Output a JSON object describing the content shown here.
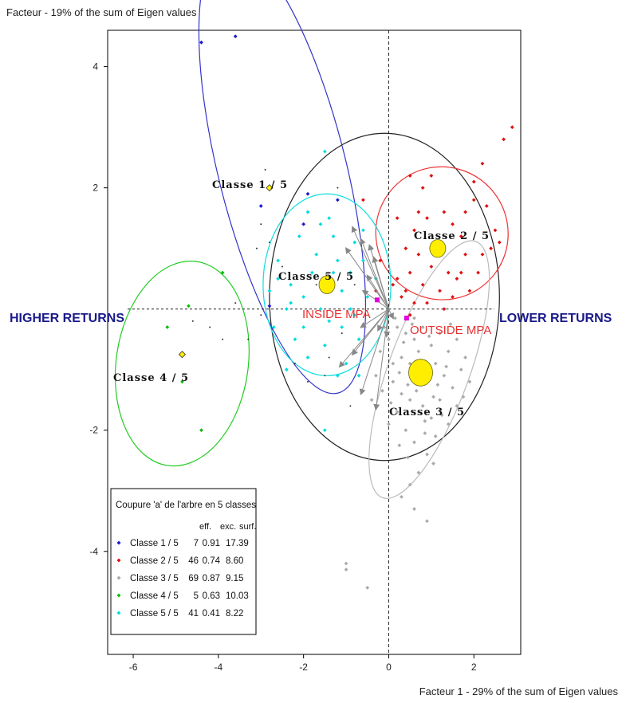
{
  "chart_data": {
    "type": "scatter",
    "ylabel": "Facteur  - 19% of the sum of Eigen values",
    "xlabel": "Facteur 1 - 29% of the sum of Eigen values",
    "xlim": [
      -6.6,
      3.1
    ],
    "ylim": [
      -5.7,
      4.6
    ],
    "xticks": [
      -6,
      -4,
      -2,
      0,
      2
    ],
    "yticks": [
      -4,
      -2,
      2,
      4
    ],
    "axis_annotations": {
      "left": "HIGHER RETURNS",
      "right": "LOWER RETURNS",
      "inside": "INSIDE MPA",
      "outside": "OUTSIDE MPA"
    },
    "supplementary_points": [
      {
        "label": "INSIDE MPA",
        "x": -0.27,
        "y": 0.15,
        "color": "#e000e0"
      },
      {
        "label": "OUTSIDE MPA",
        "x": 0.42,
        "y": -0.15,
        "color": "#e000e0"
      }
    ],
    "legend": {
      "title": "Coupure 'a' de l'arbre en  5 classes",
      "columns": [
        "eff.",
        "exc.",
        "surf."
      ],
      "rows": [
        {
          "name": "Classe  1 / 5",
          "eff": "7",
          "exc": "0.91",
          "surf": "17.39",
          "color": "#1a1acc"
        },
        {
          "name": "Classe  2 / 5",
          "eff": "46",
          "exc": "0.74",
          "surf": "8.60",
          "color": "#dd1111"
        },
        {
          "name": "Classe  3 / 5",
          "eff": "69",
          "exc": "0.87",
          "surf": "9.15",
          "color": "#aaaaaa"
        },
        {
          "name": "Classe  4 / 5",
          "eff": "5",
          "exc": "0.63",
          "surf": "10.03",
          "color": "#11bb11"
        },
        {
          "name": "Classe  5 / 5",
          "eff": "41",
          "exc": "0.41",
          "surf": "8.22",
          "color": "#00dddd"
        }
      ]
    },
    "series": [
      {
        "name": "Classe 1 / 5",
        "color": "#1a1acc",
        "centroid": {
          "label": "Classe  1 / 5",
          "x": -2.8,
          "y": 2.0,
          "size": "small"
        },
        "ellipse": {
          "cx": -2.5,
          "cy": 2.3,
          "rx": 1.5,
          "ry": 3.8,
          "angle": -14,
          "color": "#3333cc"
        },
        "points": [
          [
            -4.4,
            4.4
          ],
          [
            -3.6,
            4.5
          ],
          [
            -3.0,
            1.7
          ],
          [
            -1.9,
            1.9
          ],
          [
            -1.2,
            1.8
          ],
          [
            -2.8,
            0.05
          ],
          [
            -2.0,
            1.4
          ]
        ]
      },
      {
        "name": "Classe 2 / 5",
        "color": "#dd1111",
        "centroid": {
          "label": "Classe  2 / 5",
          "x": 1.15,
          "y": 1.0,
          "size": "medium"
        },
        "ellipse": {
          "cx": 1.25,
          "cy": 1.25,
          "rx": 1.55,
          "ry": 1.1,
          "angle": -32,
          "color": "#ee3333"
        },
        "points": [
          [
            2.7,
            2.8
          ],
          [
            2.9,
            3.0
          ],
          [
            2.2,
            2.4
          ],
          [
            2.0,
            2.1
          ],
          [
            1.8,
            1.6
          ],
          [
            2.0,
            1.8
          ],
          [
            2.3,
            1.7
          ],
          [
            2.5,
            1.3
          ],
          [
            0.5,
            2.2
          ],
          [
            0.8,
            2.0
          ],
          [
            1.0,
            2.2
          ],
          [
            0.2,
            1.5
          ],
          [
            0.6,
            1.3
          ],
          [
            0.9,
            1.5
          ],
          [
            1.3,
            1.6
          ],
          [
            1.5,
            1.4
          ],
          [
            1.7,
            1.2
          ],
          [
            2.2,
            0.9
          ],
          [
            2.4,
            1.0
          ],
          [
            0.4,
            1.0
          ],
          [
            0.7,
            0.9
          ],
          [
            1.0,
            0.7
          ],
          [
            1.4,
            0.6
          ],
          [
            1.6,
            0.5
          ],
          [
            1.8,
            0.9
          ],
          [
            0.2,
            0.5
          ],
          [
            0.5,
            0.6
          ],
          [
            0.8,
            0.4
          ],
          [
            1.2,
            0.3
          ],
          [
            1.5,
            0.2
          ],
          [
            0.3,
            0.2
          ],
          [
            0.6,
            0.1
          ],
          [
            0.9,
            0.1
          ],
          [
            1.3,
            0.0
          ],
          [
            0.1,
            0.4
          ],
          [
            0.4,
            0.3
          ],
          [
            -0.2,
            0.8
          ],
          [
            -0.6,
            1.8
          ],
          [
            1.9,
            0.3
          ],
          [
            2.1,
            0.6
          ],
          [
            0.7,
            1.6
          ],
          [
            1.1,
            1.1
          ],
          [
            -0.3,
            0.3
          ],
          [
            0.5,
            -0.1
          ],
          [
            1.7,
            0.6
          ],
          [
            2.6,
            1.1
          ]
        ]
      },
      {
        "name": "Classe 3 / 5",
        "color": "#aaaaaa",
        "centroid": {
          "label": "Classe  3 / 5",
          "x": 0.75,
          "y": -1.05,
          "size": "large"
        },
        "ellipse": {
          "cx": 0.95,
          "cy": -1.0,
          "rx": 0.95,
          "ry": 2.25,
          "angle": 20,
          "color": "#bbbbbb"
        },
        "points": [
          [
            0.2,
            -0.3
          ],
          [
            0.4,
            -0.4
          ],
          [
            0.6,
            -0.5
          ],
          [
            0.8,
            -0.3
          ],
          [
            1.0,
            -0.6
          ],
          [
            1.2,
            -0.4
          ],
          [
            1.4,
            -0.7
          ],
          [
            1.6,
            -0.5
          ],
          [
            0.3,
            -0.8
          ],
          [
            0.5,
            -0.9
          ],
          [
            0.7,
            -0.7
          ],
          [
            0.9,
            -1.0
          ],
          [
            1.1,
            -0.9
          ],
          [
            1.3,
            -1.1
          ],
          [
            1.5,
            -1.3
          ],
          [
            1.7,
            -1.0
          ],
          [
            0.1,
            -1.2
          ],
          [
            0.3,
            -1.4
          ],
          [
            0.5,
            -1.5
          ],
          [
            0.8,
            -1.6
          ],
          [
            1.0,
            -1.8
          ],
          [
            1.2,
            -1.5
          ],
          [
            1.4,
            -1.9
          ],
          [
            0.2,
            -1.7
          ],
          [
            0.4,
            -2.0
          ],
          [
            0.6,
            -2.2
          ],
          [
            0.9,
            -2.4
          ],
          [
            1.1,
            -2.1
          ],
          [
            0.0,
            -1.9
          ],
          [
            -0.3,
            -1.1
          ],
          [
            -0.4,
            -1.5
          ],
          [
            -0.2,
            -0.7
          ],
          [
            0.0,
            -0.5
          ],
          [
            0.1,
            -0.9
          ],
          [
            0.7,
            -2.7
          ],
          [
            0.5,
            -2.9
          ],
          [
            0.3,
            -3.1
          ],
          [
            0.6,
            -3.3
          ],
          [
            0.9,
            -3.5
          ],
          [
            -1.0,
            -4.2
          ],
          [
            -1.0,
            -4.3
          ],
          [
            -0.5,
            -4.6
          ],
          [
            -3.5,
            -5.2
          ],
          [
            1.8,
            -0.8
          ],
          [
            1.6,
            -1.6
          ],
          [
            1.9,
            -1.2
          ],
          [
            0.15,
            -0.15
          ],
          [
            0.35,
            -0.55
          ],
          [
            0.55,
            -0.25
          ],
          [
            0.75,
            -0.85
          ],
          [
            0.95,
            -0.45
          ],
          [
            1.15,
            -1.25
          ],
          [
            1.35,
            -0.95
          ],
          [
            0.25,
            -1.05
          ],
          [
            0.45,
            -1.25
          ],
          [
            0.65,
            -1.35
          ],
          [
            0.85,
            -1.85
          ],
          [
            1.05,
            -1.45
          ],
          [
            1.25,
            -1.75
          ],
          [
            -0.15,
            -1.35
          ],
          [
            0.05,
            -1.55
          ],
          [
            0.25,
            -2.25
          ],
          [
            0.45,
            -2.45
          ],
          [
            0.85,
            -2.05
          ],
          [
            1.05,
            -2.55
          ],
          [
            -0.1,
            -0.3
          ],
          [
            1.75,
            -1.45
          ],
          [
            0.6,
            -0.15
          ],
          [
            1.45,
            -0.25
          ]
        ]
      },
      {
        "name": "Classe 4 / 5",
        "color": "#11bb11",
        "centroid": {
          "label": "Classe  4 / 5",
          "x": -4.85,
          "y": -0.75,
          "size": "small"
        },
        "ellipse": {
          "cx": -4.85,
          "cy": -0.9,
          "rx": 1.55,
          "ry": 1.7,
          "angle": 8,
          "color": "#22cc22"
        },
        "points": [
          [
            -3.9,
            0.6
          ],
          [
            -4.7,
            0.05
          ],
          [
            -4.85,
            -1.2
          ],
          [
            -4.4,
            -2.0
          ],
          [
            -5.2,
            -0.3
          ]
        ]
      },
      {
        "name": "Classe 5 / 5",
        "color": "#00dddd",
        "centroid": {
          "label": "Classe  5 / 5",
          "x": -1.45,
          "y": 0.4,
          "size": "medium"
        },
        "ellipse": {
          "cx": -1.45,
          "cy": 0.4,
          "rx": 1.5,
          "ry": 1.5,
          "angle": 0,
          "color": "#11dddd"
        },
        "points": [
          [
            -1.5,
            2.6
          ],
          [
            -1.9,
            1.6
          ],
          [
            -1.6,
            1.4
          ],
          [
            -1.3,
            1.2
          ],
          [
            -0.8,
            1.1
          ],
          [
            -1.2,
            0.8
          ],
          [
            -1.8,
            0.6
          ],
          [
            -2.3,
            0.4
          ],
          [
            -2.6,
            0.5
          ],
          [
            -2.3,
            0.1
          ],
          [
            -2.0,
            0.2
          ],
          [
            -1.6,
            0.0
          ],
          [
            -1.4,
            -0.2
          ],
          [
            -1.1,
            0.3
          ],
          [
            -0.9,
            0.6
          ],
          [
            -0.6,
            0.8
          ],
          [
            -0.5,
            0.2
          ],
          [
            -0.8,
            -0.1
          ],
          [
            -1.1,
            -0.3
          ],
          [
            -1.5,
            -0.6
          ],
          [
            -1.9,
            -0.8
          ],
          [
            -2.2,
            -0.5
          ],
          [
            -2.7,
            -0.3
          ],
          [
            -2.6,
            0.8
          ],
          [
            -2.8,
            0.3
          ],
          [
            -1.0,
            -0.9
          ],
          [
            -0.7,
            -1.1
          ],
          [
            -1.2,
            -1.1
          ],
          [
            -0.6,
            1.3
          ],
          [
            -0.3,
            0.5
          ],
          [
            -1.5,
            -2.0
          ],
          [
            -2.4,
            -1.0
          ],
          [
            -1.7,
            0.9
          ],
          [
            -2.1,
            1.2
          ],
          [
            -2.4,
            0.0
          ],
          [
            -0.4,
            1.0
          ],
          [
            -1.3,
            0.6
          ],
          [
            -0.9,
            0.0
          ],
          [
            -2.0,
            -0.3
          ],
          [
            -1.4,
            1.5
          ],
          [
            -0.7,
            -0.5
          ]
        ]
      }
    ],
    "black_circle": {
      "cx": -0.1,
      "cy": 0.2,
      "r": 2.7
    },
    "small_black_points": [
      [
        -4.6,
        -0.2
      ],
      [
        -4.2,
        -0.3
      ],
      [
        -3.6,
        0.1
      ],
      [
        -3.3,
        -0.5
      ],
      [
        -3.0,
        -0.1
      ],
      [
        -2.8,
        1.1
      ],
      [
        -2.5,
        0.7
      ],
      [
        -2.2,
        -0.9
      ],
      [
        -1.9,
        -1.2
      ],
      [
        -1.7,
        0.4
      ],
      [
        -1.4,
        -0.8
      ],
      [
        -1.1,
        -0.4
      ],
      [
        -0.8,
        0.4
      ],
      [
        -2.9,
        2.3
      ],
      [
        -3.0,
        1.4
      ],
      [
        -3.9,
        -0.5
      ],
      [
        -1.2,
        2.0
      ],
      [
        -0.9,
        -1.6
      ],
      [
        -1.5,
        -1.1
      ],
      [
        -3.1,
        1.0
      ]
    ],
    "arrows": [
      [
        -1.0,
        1.0
      ],
      [
        -0.85,
        1.35
      ],
      [
        -0.65,
        1.15
      ],
      [
        -0.45,
        1.05
      ],
      [
        -0.35,
        0.85
      ],
      [
        -0.5,
        0.55
      ],
      [
        -0.6,
        0.3
      ],
      [
        -0.25,
        -0.35
      ],
      [
        -0.65,
        -0.3
      ],
      [
        -0.85,
        -0.75
      ],
      [
        -1.15,
        -0.95
      ],
      [
        -0.65,
        -1.4
      ],
      [
        -0.3,
        -1.65
      ],
      [
        0.1,
        -0.15
      ],
      [
        -0.05,
        -0.45
      ]
    ],
    "arrow_origin": [
      0.0,
      0.0
    ]
  }
}
